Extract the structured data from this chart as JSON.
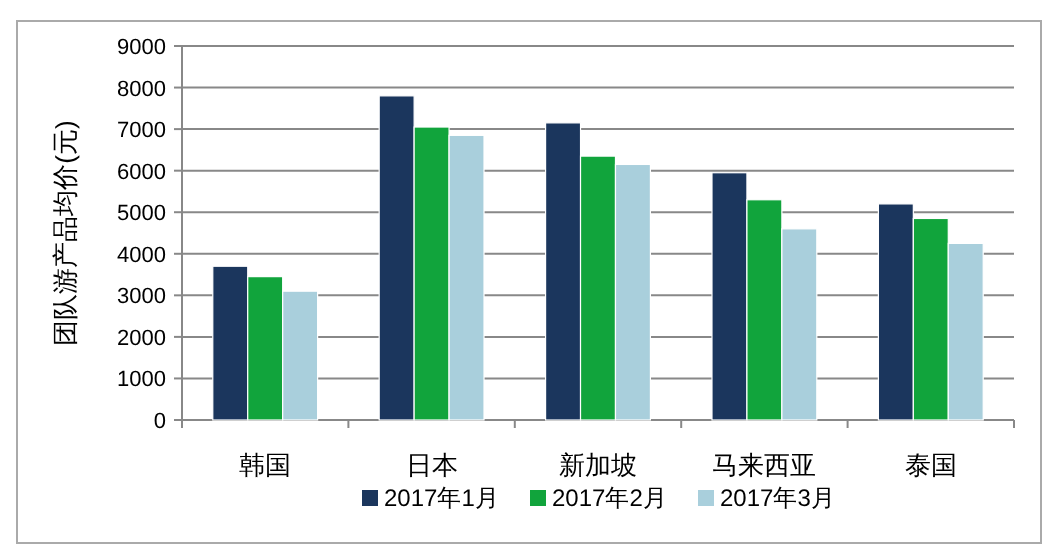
{
  "chart_data": {
    "type": "bar",
    "ylabel": "团队游产品均价(元)",
    "categories": [
      "韩国",
      "日本",
      "新加坡",
      "马来西亚",
      "泰国"
    ],
    "series": [
      {
        "name": "2017年1月",
        "color": "#1b365d",
        "values": [
          3700,
          7800,
          7150,
          5950,
          5200
        ]
      },
      {
        "name": "2017年2月",
        "color": "#11a43c",
        "values": [
          3450,
          7050,
          6350,
          5300,
          4850
        ]
      },
      {
        "name": "2017年3月",
        "color": "#a9cfdc",
        "values": [
          3100,
          6850,
          6150,
          4600,
          4250
        ]
      }
    ],
    "ylim": [
      0,
      9000
    ],
    "yticks": [
      0,
      1000,
      2000,
      3000,
      4000,
      5000,
      6000,
      7000,
      8000,
      9000
    ],
    "grid": "y",
    "legend": "bottom"
  }
}
